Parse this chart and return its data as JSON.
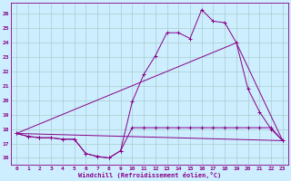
{
  "xlabel": "Windchill (Refroidissement éolien,°C)",
  "background_color": "#cceeff",
  "grid_color": "#aacccc",
  "line_color": "#880088",
  "x_ticks": [
    0,
    1,
    2,
    3,
    4,
    5,
    6,
    7,
    8,
    9,
    10,
    11,
    12,
    13,
    14,
    15,
    16,
    17,
    18,
    19,
    20,
    21,
    22,
    23
  ],
  "ylim": [
    15.5,
    26.8
  ],
  "xlim": [
    -0.5,
    23.5
  ],
  "y_ticks": [
    16,
    17,
    18,
    19,
    20,
    21,
    22,
    23,
    24,
    25,
    26
  ],
  "series1_x": [
    0,
    1,
    2,
    3,
    4,
    5,
    6,
    7,
    8,
    9,
    10,
    11,
    12,
    13,
    14,
    15,
    16,
    17,
    18,
    19,
    20,
    21,
    22,
    23
  ],
  "series1_y": [
    17.7,
    17.5,
    17.4,
    17.4,
    17.3,
    17.3,
    16.3,
    16.1,
    16.0,
    16.5,
    18.1,
    18.1,
    18.1,
    18.1,
    18.1,
    18.1,
    18.1,
    18.1,
    18.1,
    18.1,
    18.1,
    18.1,
    18.1,
    17.2
  ],
  "series2_x": [
    0,
    1,
    2,
    3,
    4,
    5,
    6,
    7,
    8,
    9,
    10,
    11,
    12,
    13,
    14,
    15,
    16,
    17,
    18,
    19,
    20,
    21,
    22,
    23
  ],
  "series2_y": [
    17.7,
    17.5,
    17.4,
    17.4,
    17.3,
    17.3,
    16.3,
    16.1,
    16.0,
    16.5,
    19.9,
    21.8,
    23.1,
    24.7,
    24.7,
    24.3,
    26.3,
    25.5,
    25.4,
    24.0,
    20.8,
    19.2,
    18.0,
    17.2
  ],
  "series3_x": [
    0,
    23
  ],
  "series3_y": [
    17.7,
    17.2
  ],
  "series4_x": [
    0,
    19,
    23
  ],
  "series4_y": [
    17.7,
    24.0,
    17.2
  ]
}
